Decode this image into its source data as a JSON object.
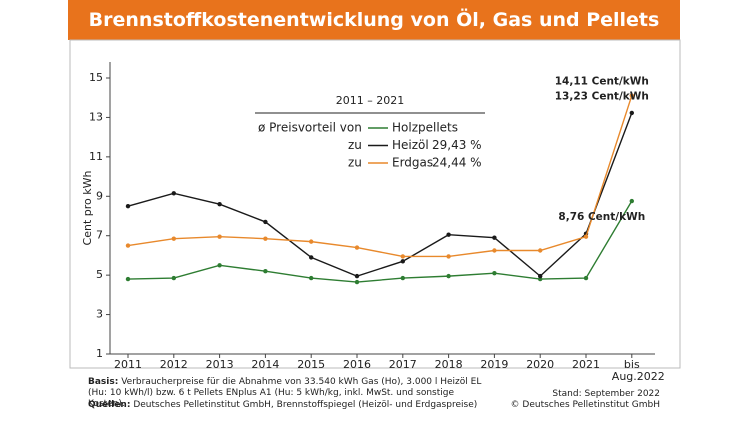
{
  "chart_data": {
    "type": "line",
    "title": "Brennstoffkostenentwicklung von Öl, Gas und Pellets",
    "y_label": "Cent pro kWh",
    "categories": [
      "2011",
      "2012",
      "2013",
      "2014",
      "2015",
      "2016",
      "2017",
      "2018",
      "2019",
      "2020",
      "2021",
      "bis Aug.2022"
    ],
    "ylim": [
      1,
      15
    ],
    "yticks": [
      1,
      3,
      5,
      7,
      9,
      11,
      13,
      15
    ],
    "grid": false,
    "legend_title": "2011 – 2021",
    "legend_intro": "ø Preisvorteil von",
    "series": [
      {
        "name": "Holzpellets",
        "color": "#2e7d32",
        "values": [
          4.8,
          4.85,
          5.5,
          5.2,
          4.85,
          4.65,
          4.85,
          4.95,
          5.1,
          4.8,
          4.85,
          8.76
        ],
        "value_labels": [
          null,
          null,
          null,
          null,
          null,
          null,
          null,
          null,
          null,
          null,
          null,
          "8,76 Cent/kWh"
        ]
      },
      {
        "name": "Heizöl",
        "legend_prefix": "zu",
        "legend_suffix": "29,43 %",
        "color": "#1a1a1a",
        "values": [
          8.5,
          9.15,
          8.6,
          7.7,
          5.9,
          4.95,
          5.7,
          7.05,
          6.9,
          4.95,
          7.1,
          13.23
        ],
        "value_labels": [
          null,
          null,
          null,
          null,
          null,
          null,
          null,
          null,
          null,
          null,
          null,
          "13,23 Cent/kWh"
        ]
      },
      {
        "name": "Erdgas",
        "legend_prefix": "zu",
        "legend_suffix": "24,44 %",
        "color": "#e8892c",
        "values": [
          6.5,
          6.85,
          6.95,
          6.85,
          6.7,
          6.4,
          5.95,
          5.95,
          6.25,
          6.25,
          6.95,
          14.11
        ],
        "value_labels": [
          null,
          null,
          null,
          null,
          null,
          null,
          null,
          null,
          null,
          null,
          null,
          "14,11 Cent/kWh"
        ]
      }
    ],
    "notes": {
      "basis_label": "Basis:",
      "basis_text": "Verbraucherpreise für die Abnahme von 33.540 kWh Gas (Ho), 3.000 l Heizöl EL (Hu: 10 kWh/l) bzw. 6 t Pellets ENplus A1 (Hu: 5 kWh/kg, inkl. MwSt. und sonstige Kosten).",
      "sources_label": "Quellen:",
      "sources_text": "Deutsches Pelletinstitut GmbH, Brennstoffspiegel (Heizöl- und Erdgaspreise)",
      "date": "Stand: September 2022",
      "copyright": "© Deutsches Pelletinstitut GmbH"
    }
  }
}
